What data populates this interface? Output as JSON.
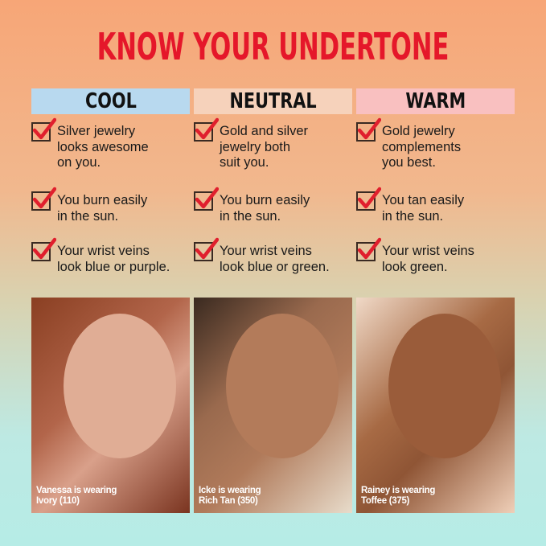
{
  "title": "KNOW YOUR UNDERTONE",
  "colors": {
    "title": "#e5172a",
    "cool": "#b8d9ef",
    "neutral": "#f6d2bb",
    "warm": "#f9c0c0",
    "check": "#e01f2d"
  },
  "columns": [
    {
      "header": "COOL",
      "items": [
        [
          "Silver jewelry",
          "looks awesome",
          "on you."
        ],
        [
          "You burn easily",
          "in the sun."
        ],
        [
          "Your wrist veins",
          "look blue or purple."
        ]
      ],
      "caption": [
        "Vanessa is wearing",
        "Ivory (110)"
      ]
    },
    {
      "header": "NEUTRAL",
      "items": [
        [
          "Gold and silver",
          "jewelry both",
          "suit you."
        ],
        [
          "You burn easily",
          "in the sun."
        ],
        [
          "Your wrist veins",
          "look blue or green."
        ]
      ],
      "caption": [
        "Icke is wearing",
        "Rich Tan (350)"
      ]
    },
    {
      "header": "WARM",
      "items": [
        [
          "Gold jewelry",
          "complements",
          "you best."
        ],
        [
          "You tan easily",
          "in the sun."
        ],
        [
          "Your wrist veins",
          "look green."
        ]
      ],
      "caption": [
        "Rainey is wearing",
        "Toffee (375)"
      ]
    }
  ],
  "icons": {
    "check": "checkbox-checked-icon"
  }
}
